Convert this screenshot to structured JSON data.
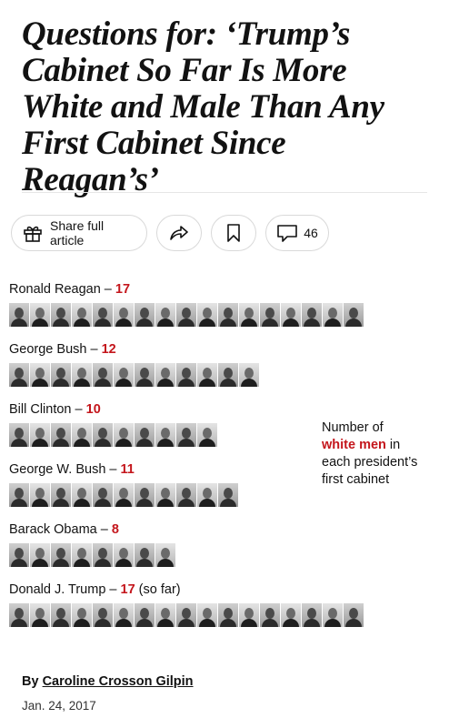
{
  "article": {
    "headline": "Questions for: ‘Trump’s Cabinet So Far Is More White and Male Than Any First Cabinet Since Reagan’s’"
  },
  "toolbar": {
    "share_label": "Share full article",
    "comment_count": "46"
  },
  "rows": [
    {
      "name": "Ronald Reagan",
      "sep": " – ",
      "count": "17",
      "suffix": ""
    },
    {
      "name": "George Bush",
      "sep": " – ",
      "count": "12",
      "suffix": ""
    },
    {
      "name": "Bill Clinton",
      "sep": " – ",
      "count": "10",
      "suffix": ""
    },
    {
      "name": "George W. Bush",
      "sep": " – ",
      "count": "11",
      "suffix": ""
    },
    {
      "name": "Barack Obama",
      "sep": " – ",
      "count": "8",
      "suffix": ""
    },
    {
      "name": "Donald J. Trump",
      "sep": " – ",
      "count": "17",
      "suffix": " (so far)"
    }
  ],
  "legend": {
    "line1": "Number of",
    "highlight": "white men",
    "line2_rest": " in",
    "line3": "each president’s",
    "line4": "first cabinet"
  },
  "byline": {
    "prefix": "By ",
    "author": "Caroline Crosson Gilpin",
    "date": "Jan. 24, 2017"
  }
}
